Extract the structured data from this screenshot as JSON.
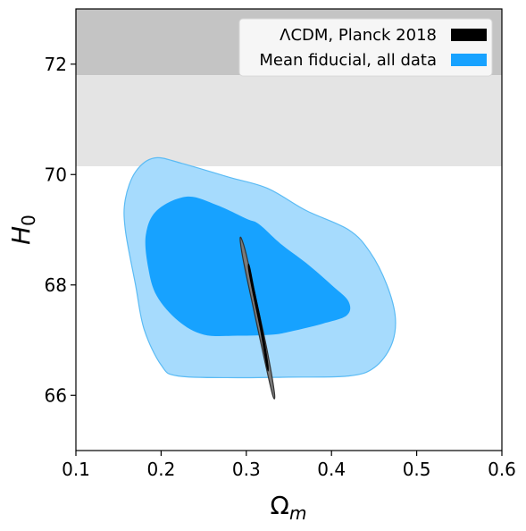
{
  "chart_data": {
    "type": "contour",
    "xlabel": "Ω",
    "xlabel_sub": "m",
    "ylabel": "H",
    "ylabel_sub": "0",
    "xlim": [
      0.1,
      0.6
    ],
    "ylim": [
      65.0,
      73.0
    ],
    "x_ticks": [
      0.1,
      0.2,
      0.3,
      0.4,
      0.5,
      0.6
    ],
    "x_tick_labels": [
      "0.1",
      "0.2",
      "0.3",
      "0.4",
      "0.5",
      "0.6"
    ],
    "y_ticks": [
      66,
      68,
      70,
      72
    ],
    "y_tick_labels": [
      "66",
      "68",
      "70",
      "72"
    ],
    "grid": false,
    "legend_position": "top-right",
    "bands": [
      {
        "y_range": [
          71.8,
          73.0
        ],
        "color": "#c4c4c4"
      },
      {
        "y_range": [
          70.15,
          71.8
        ],
        "color": "#e4e4e4"
      }
    ],
    "series": [
      {
        "name": "Mean fiducial, all data",
        "legend_color": "#17a2ff",
        "outer_fill": "#a6dbfd",
        "outer_stroke": "#5bbbf4",
        "inner_fill": "#17a2ff",
        "contours": {
          "outer_2sigma": [
            [
              0.192,
              70.3
            ],
            [
              0.225,
              70.2
            ],
            [
              0.28,
              69.95
            ],
            [
              0.325,
              69.75
            ],
            [
              0.37,
              69.35
            ],
            [
              0.42,
              69.0
            ],
            [
              0.445,
              68.6
            ],
            [
              0.465,
              68.0
            ],
            [
              0.475,
              67.4
            ],
            [
              0.47,
              66.9
            ],
            [
              0.45,
              66.5
            ],
            [
              0.42,
              66.35
            ],
            [
              0.35,
              66.33
            ],
            [
              0.29,
              66.32
            ],
            [
              0.22,
              66.35
            ],
            [
              0.2,
              66.55
            ],
            [
              0.18,
              67.2
            ],
            [
              0.17,
              68.0
            ],
            [
              0.158,
              69.0
            ],
            [
              0.158,
              69.55
            ],
            [
              0.17,
              70.05
            ]
          ],
          "inner_1sigma": [
            [
              0.23,
              69.6
            ],
            [
              0.265,
              69.45
            ],
            [
              0.3,
              69.2
            ],
            [
              0.315,
              69.1
            ],
            [
              0.34,
              68.75
            ],
            [
              0.37,
              68.4
            ],
            [
              0.4,
              68.0
            ],
            [
              0.42,
              67.7
            ],
            [
              0.418,
              67.45
            ],
            [
              0.39,
              67.3
            ],
            [
              0.35,
              67.15
            ],
            [
              0.33,
              67.1
            ],
            [
              0.29,
              67.08
            ],
            [
              0.25,
              67.1
            ],
            [
              0.22,
              67.35
            ],
            [
              0.195,
              67.8
            ],
            [
              0.185,
              68.3
            ],
            [
              0.182,
              68.9
            ],
            [
              0.195,
              69.35
            ]
          ]
        }
      },
      {
        "name": "ΛCDM, Planck 2018",
        "legend_color": "#000000",
        "outer_fill": "#7a7a7a",
        "outer_stroke": "#333333",
        "inner_fill": "#000000",
        "contours": {
          "outer_2sigma": [
            [
              0.294,
              68.85
            ],
            [
              0.3,
              68.55
            ],
            [
              0.312,
              67.7
            ],
            [
              0.324,
              66.85
            ],
            [
              0.333,
              66.05
            ],
            [
              0.331,
              66.0
            ],
            [
              0.322,
              66.6
            ],
            [
              0.308,
              67.6
            ],
            [
              0.297,
              68.4
            ],
            [
              0.293,
              68.78
            ]
          ],
          "inner_1sigma": [
            [
              0.304,
              68.35
            ],
            [
              0.31,
              67.9
            ],
            [
              0.318,
              67.3
            ],
            [
              0.326,
              66.55
            ],
            [
              0.324,
              66.5
            ],
            [
              0.316,
              67.2
            ],
            [
              0.308,
              67.8
            ],
            [
              0.302,
              68.3
            ]
          ]
        }
      }
    ],
    "legend_order": [
      "ΛCDM, Planck 2018",
      "Mean fiducial, all data"
    ]
  }
}
